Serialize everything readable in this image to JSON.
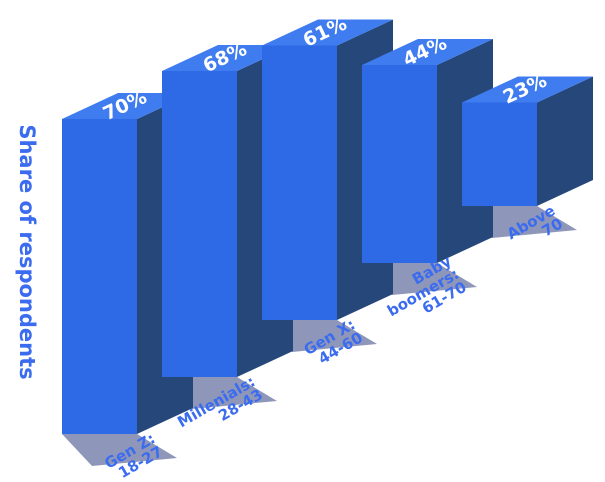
{
  "chart_data": {
    "type": "bar",
    "categories": [
      "Gen Z:\n18-27",
      "Millenials:\n28-43",
      "Gen X:\n44-60",
      "Baby\nboomers:\n61-70",
      "Above\n70"
    ],
    "values": [
      70,
      68,
      61,
      44,
      23
    ],
    "value_labels": [
      "70%",
      "68%",
      "61%",
      "44%",
      "23%"
    ],
    "title": "",
    "xlabel": "",
    "ylabel": "Share of respondents",
    "ylim": [
      0,
      70
    ],
    "grid": false,
    "legend": "none",
    "style": "3d-isometric"
  },
  "colors": {
    "front": "#2e6ae6",
    "top": "#3f7cf0",
    "side": "#25477a",
    "shadow": "#7a84ad",
    "text": "#3b6cf0"
  }
}
